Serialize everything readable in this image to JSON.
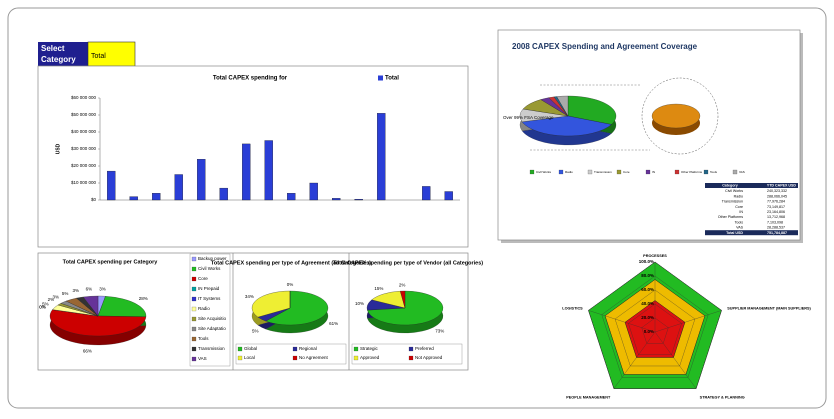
{
  "selector": {
    "label": [
      "Select",
      "Category"
    ],
    "value": "Total"
  },
  "chart_data": [
    {
      "type": "bar",
      "title": "Total CAPEX spending for",
      "y_label": "USD",
      "categories": [
        null,
        null,
        null,
        null,
        null,
        null,
        null,
        null,
        null,
        null,
        null,
        null,
        null,
        null,
        null,
        null
      ],
      "series": [
        {
          "name": "Total",
          "color": "#2a3ed6",
          "values": [
            17000000,
            2000000,
            4000000,
            15000000,
            24000000,
            7000000,
            33000000,
            35000000,
            4000000,
            10000000,
            1000000,
            500000,
            51000000,
            0,
            8000000,
            5000000
          ]
        }
      ],
      "ylim": [
        0,
        60000000
      ],
      "yticks": [
        {
          "value": 0,
          "label": "$0"
        },
        {
          "value": 10000000,
          "label": "$10 000 000"
        },
        {
          "value": 20000000,
          "label": "$20 000 000"
        },
        {
          "value": 30000000,
          "label": "$30 000 000"
        },
        {
          "value": 40000000,
          "label": "$40 000 000"
        },
        {
          "value": 50000000,
          "label": "$50 000 000"
        },
        {
          "value": 60000000,
          "label": "$60 000 000"
        }
      ],
      "grid": false
    },
    {
      "type": "pie",
      "title": "Total CAPEX spending per Category",
      "categories": [
        "Backup power",
        "Civil Works",
        "Core",
        "IN Prepaid",
        "IT Systems",
        "Radio",
        "Site Acquisitio",
        "Site Adaptatio",
        "Tools",
        "Transmission",
        "VAS"
      ],
      "values": [
        3,
        28,
        66,
        0,
        0,
        5,
        2,
        3,
        5,
        3,
        6
      ],
      "value_labels": [
        "3%",
        "28%",
        "66%",
        "0%",
        "0%",
        "5%",
        "2%",
        "3%",
        "5%",
        "3%",
        "6%"
      ],
      "colors": [
        "#9999ff",
        "#22bb22",
        "#cc0000",
        "#00a0a0",
        "#3333cc",
        "#ffff99",
        "#999933",
        "#888888",
        "#996633",
        "#333333",
        "#663399"
      ]
    },
    {
      "type": "pie",
      "title": "Total CAPEX spending per type of Agreement (all Categories)",
      "categories": [
        "Global",
        "Regional",
        "Local",
        "No Agreement"
      ],
      "values": [
        61,
        5,
        34,
        0
      ],
      "value_labels": [
        "61%",
        "5%",
        "34%",
        "0%"
      ],
      "colors": [
        "#22bb22",
        "#2a2a99",
        "#eeee33",
        "#cc0000"
      ]
    },
    {
      "type": "pie",
      "title": "Total CAPEX spending per type of Vendor (all Categories)",
      "categories": [
        "Strategic",
        "Preferred",
        "Approved",
        "Not Approved"
      ],
      "values": [
        73,
        10,
        15,
        2
      ],
      "value_labels": [
        "73%",
        "10%",
        "15%",
        "2%"
      ],
      "colors": [
        "#22bb22",
        "#2a2a99",
        "#eeee33",
        "#cc0000"
      ]
    },
    {
      "type": "pie",
      "title": "2008 CAPEX Spending and Agreement Coverage",
      "annotation": "Over 99% FSA Coverage",
      "categories": [
        "Civil Works",
        "Radio",
        "Transmission",
        "Core",
        "IN",
        "Other Platforms",
        "Tools",
        "VAS"
      ],
      "values": [
        240323332,
        288066045,
        77976284,
        73149817,
        23164806,
        13712968,
        7103098,
        28288537
      ],
      "value_labels": [
        "240,323,332",
        "288,066,045",
        "77,976,284",
        "73,149,817",
        "23,164,806",
        "13,712,968",
        "7,103,098",
        "28,288,537"
      ],
      "colors": [
        "#22aa22",
        "#3355dd",
        "#cccccc",
        "#999933",
        "#663399",
        "#cc3333",
        "#226688",
        "#aaaaaa"
      ],
      "table": {
        "header": [
          "Category",
          "YTD CAPEX USD"
        ],
        "total_label": "Total USD",
        "total": "751,784,887"
      }
    },
    {
      "type": "radar",
      "categories": [
        "PROCESSES",
        "SUPPLIER MANAGEMENT (MAIN SUPPLIERS)",
        "STRATEGY & PLANNING",
        "PEOPLE MANAGEMENT",
        "LOGISTICS"
      ],
      "series": [
        {
          "color": "#22bb22",
          "values": [
            100,
            100,
            100,
            100,
            100
          ]
        },
        {
          "color": "#eebb00",
          "values": [
            75,
            75,
            75,
            75,
            75
          ]
        },
        {
          "color": "#dd1111",
          "values": [
            45,
            45,
            45,
            45,
            45
          ]
        }
      ],
      "ylim": [
        0,
        100
      ],
      "yticks": [
        {
          "value": 0,
          "label": "0.0%"
        },
        {
          "value": 20,
          "label": "20.0%"
        },
        {
          "value": 40,
          "label": "40.0%"
        },
        {
          "value": 60,
          "label": "60.0%"
        },
        {
          "value": 80,
          "label": "80.0%"
        },
        {
          "value": 100,
          "label": "100.0%"
        }
      ]
    }
  ]
}
